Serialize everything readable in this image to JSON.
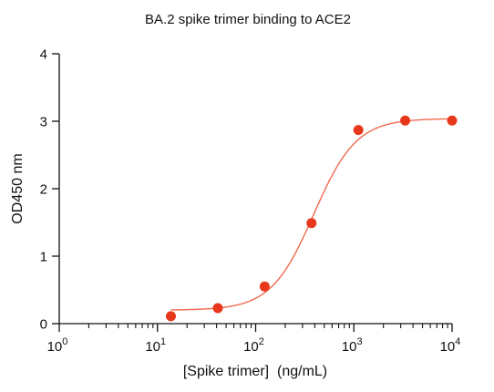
{
  "chart_data": {
    "type": "scatter",
    "title": "BA.2 spike trimer binding to ACE2",
    "xlabel": "[Spike trimer]  (ng/mL)",
    "ylabel": "OD450 nm",
    "x_scale": "log10",
    "xlim": [
      1,
      10000
    ],
    "ylim": [
      0,
      4
    ],
    "x_ticks": [
      {
        "value": 1,
        "base": "10",
        "exp": "0"
      },
      {
        "value": 10,
        "base": "10",
        "exp": "1"
      },
      {
        "value": 100,
        "base": "10",
        "exp": "2"
      },
      {
        "value": 1000,
        "base": "10",
        "exp": "3"
      },
      {
        "value": 10000,
        "base": "10",
        "exp": "4"
      }
    ],
    "y_ticks": [
      "0",
      "1",
      "2",
      "3",
      "4"
    ],
    "grid": false,
    "series": [
      {
        "color": "#e8381c",
        "points": [
          {
            "x": 13.7,
            "y": 0.11
          },
          {
            "x": 41.2,
            "y": 0.23
          },
          {
            "x": 123.5,
            "y": 0.55
          },
          {
            "x": 370.4,
            "y": 1.49
          },
          {
            "x": 1111,
            "y": 2.87
          },
          {
            "x": 3333,
            "y": 3.01
          },
          {
            "x": 10000,
            "y": 3.01
          }
        ]
      }
    ],
    "fit_curve": {
      "model": "four-parameter logistic",
      "bottom": 0.2,
      "top": 3.04,
      "ec50": 390,
      "hill": 2.0,
      "color": "#f06a4e"
    }
  }
}
